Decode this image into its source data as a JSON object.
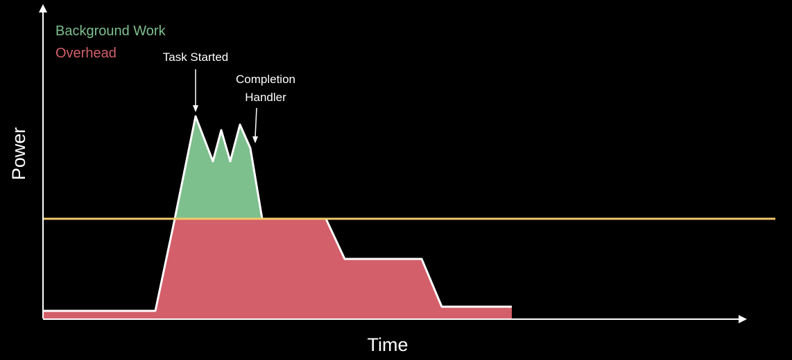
{
  "legend": [
    {
      "label": "Background Work",
      "color": "#7ebf8e"
    },
    {
      "label": "Overhead",
      "color": "#d35f6a"
    }
  ],
  "axes": {
    "x_label": "Time",
    "y_label": "Power"
  },
  "annotations": {
    "task_started": "Task Started",
    "completion_line1": "Completion",
    "completion_line2": "Handler"
  },
  "colors": {
    "background": "#000000",
    "axis": "#ffffff",
    "threshold_line": "#f0c96a",
    "outline": "#ffffff"
  }
}
